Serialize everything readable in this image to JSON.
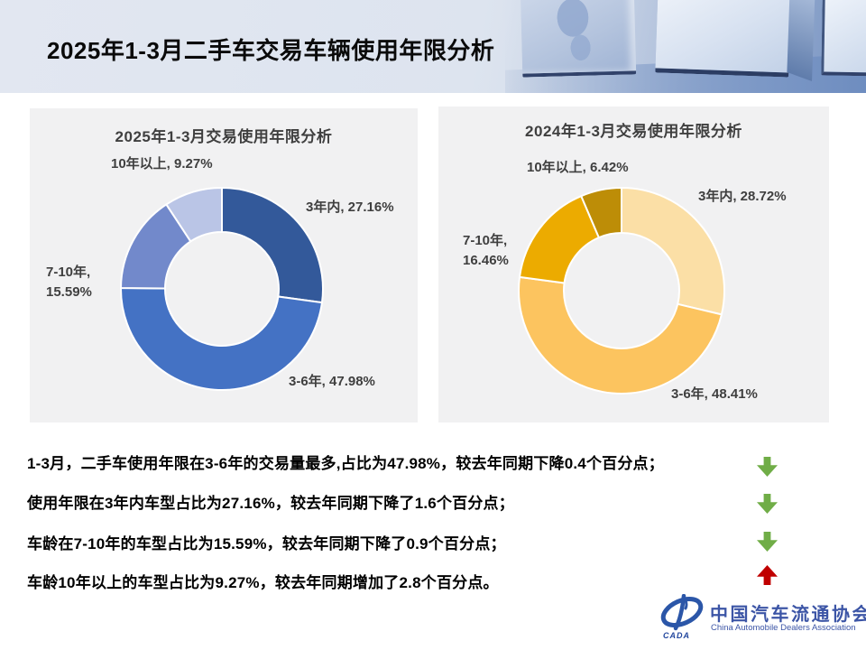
{
  "header": {
    "title": "2025年1-3月二手车交易车辆使用年限分析"
  },
  "chart_data": [
    {
      "type": "pie",
      "donut": true,
      "title": "2025年1-3月交易使用年限分析",
      "categories": [
        "3年内",
        "3-6年",
        "7-10年",
        "10年以上"
      ],
      "values": [
        27.16,
        47.98,
        15.59,
        9.27
      ],
      "colors": [
        "#33599a",
        "#4472c4",
        "#7289cb",
        "#bac5e6"
      ],
      "start_angle_deg": 0,
      "direction": "clockwise",
      "legend": "none",
      "labels": {
        "within3": "3年内, 27.16%",
        "y3to6": "3-6年, 47.98%",
        "y7to10_line1": "7-10年,",
        "y7to10_line2": "15.59%",
        "over10": "10年以上, 9.27%"
      }
    },
    {
      "type": "pie",
      "donut": true,
      "title": "2024年1-3月交易使用年限分析",
      "categories": [
        "3年内",
        "3-6年",
        "7-10年",
        "10年以上"
      ],
      "values": [
        28.72,
        48.41,
        16.46,
        6.42
      ],
      "colors": [
        "#fbdfa6",
        "#fcc45f",
        "#ecab00",
        "#bd8d07"
      ],
      "start_angle_deg": 0,
      "direction": "clockwise",
      "legend": "none",
      "labels": {
        "within3": "3年内, 28.72%",
        "y3to6": "3-6年, 48.41%",
        "y7to10_line1": "7-10年,",
        "y7to10_line2": "16.46%",
        "over10": "10年以上, 6.42%"
      }
    }
  ],
  "summary": {
    "lines": [
      {
        "text": "1-3月，二手车使用年限在3-6年的交易量最多,占比为47.98%，较去年同期下降0.4个百分点；",
        "arrow": "down"
      },
      {
        "text": "使用年限在3年内车型占比为27.16%，较去年同期下降了1.6个百分点；",
        "arrow": "down"
      },
      {
        "text": "车龄在7-10年的车型占比为15.59%，较去年同期下降了0.9个百分点；",
        "arrow": "down"
      },
      {
        "text": "车龄10年以上的车型占比为9.27%，较去年同期增加了2.8个百分点。",
        "arrow": "up"
      }
    ]
  },
  "logo": {
    "badge": "CADA",
    "name_cn": "中国汽车流通协会",
    "name_en": "China Automobile Dealers Association"
  },
  "colors": {
    "arrow_down": "#70ad47",
    "arrow_up": "#c00000",
    "panel_background": "#f1f1f2",
    "slice_divider": "#ffffff",
    "logo_blue": "#3c55a6",
    "text_dark": "#3f3f3f"
  }
}
